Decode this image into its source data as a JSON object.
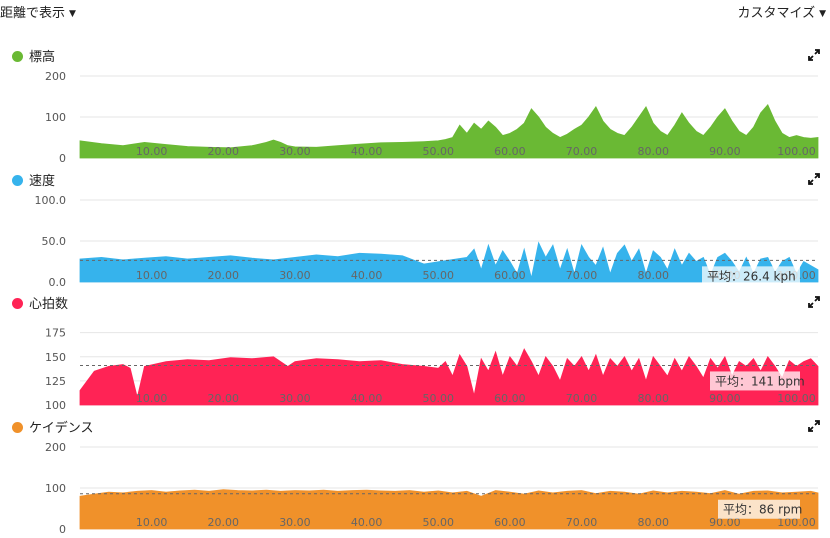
{
  "toolbar": {
    "distance_label": "距離で表示",
    "customize_label": "カスタマイズ"
  },
  "colors": {
    "elevation": "#6ab934",
    "speed": "#36b3ec",
    "heart_rate": "#ff2355",
    "cadence": "#f0912a"
  },
  "panels": [
    {
      "key": "elevation",
      "title": "標高",
      "avg_label": ""
    },
    {
      "key": "speed",
      "title": "速度",
      "avg_label": "平均：26.4 kph"
    },
    {
      "key": "heart_rate",
      "title": "心拍数",
      "avg_label": "平均：141 bpm"
    },
    {
      "key": "cadence",
      "title": "ケイデンス",
      "avg_label": "平均：86 rpm"
    }
  ],
  "chart_data": [
    {
      "type": "area",
      "name": "標高",
      "x_range": [
        0,
        103
      ],
      "x_ticks": [
        "10.00",
        "20.00",
        "30.00",
        "40.00",
        "50.00",
        "60.00",
        "70.00",
        "80.00",
        "90.00",
        "100.00"
      ],
      "y_ticks": [
        "0",
        "100",
        "200"
      ],
      "ylim": [
        0,
        200
      ],
      "x": [
        0,
        3,
        6,
        9,
        12,
        15,
        18,
        21,
        24,
        26,
        27,
        28,
        29,
        30,
        33,
        36,
        39,
        42,
        45,
        48,
        50,
        51,
        52,
        53,
        54,
        55,
        56,
        57,
        58,
        59,
        60,
        61,
        62,
        63,
        64,
        65,
        66,
        67,
        68,
        69,
        70,
        71,
        72,
        73,
        74,
        75,
        76,
        77,
        78,
        79,
        80,
        81,
        82,
        83,
        84,
        85,
        86,
        87,
        88,
        89,
        90,
        91,
        92,
        93,
        94,
        95,
        96,
        97,
        98,
        99,
        100,
        101,
        102,
        103
      ],
      "y": [
        42,
        35,
        30,
        38,
        33,
        28,
        26,
        25,
        30,
        38,
        44,
        38,
        30,
        27,
        26,
        30,
        34,
        37,
        38,
        40,
        42,
        45,
        50,
        80,
        60,
        85,
        70,
        90,
        75,
        55,
        60,
        70,
        85,
        120,
        100,
        75,
        60,
        50,
        58,
        70,
        80,
        100,
        125,
        90,
        70,
        60,
        55,
        75,
        100,
        125,
        85,
        65,
        55,
        80,
        110,
        85,
        65,
        55,
        75,
        100,
        120,
        90,
        65,
        55,
        75,
        110,
        130,
        90,
        60,
        50,
        55,
        50,
        48,
        50
      ]
    },
    {
      "type": "area",
      "name": "速度",
      "x_range": [
        0,
        103
      ],
      "x_ticks": [
        "10.00",
        "20.00",
        "30.00",
        "40.00",
        "50.00",
        "60.00",
        "70.00",
        "80.00",
        "90.00",
        "100.00"
      ],
      "y_ticks": [
        "0.0",
        "50.0",
        "100.0"
      ],
      "ylim": [
        0,
        100
      ],
      "average": 26.4,
      "x": [
        0,
        3,
        6,
        9,
        12,
        15,
        18,
        21,
        24,
        27,
        30,
        33,
        36,
        39,
        42,
        45,
        48,
        51,
        54,
        55,
        56,
        57,
        58,
        59,
        60,
        61,
        62,
        63,
        64,
        65,
        66,
        67,
        68,
        69,
        70,
        71,
        72,
        73,
        74,
        75,
        76,
        77,
        78,
        79,
        80,
        81,
        82,
        83,
        84,
        85,
        86,
        87,
        88,
        89,
        90,
        91,
        92,
        93,
        94,
        95,
        96,
        97,
        98,
        99,
        100,
        101,
        102,
        103
      ],
      "y": [
        28,
        30,
        27,
        29,
        31,
        28,
        30,
        32,
        29,
        27,
        30,
        33,
        31,
        35,
        34,
        32,
        22,
        26,
        30,
        40,
        15,
        45,
        20,
        38,
        25,
        10,
        40,
        5,
        48,
        30,
        45,
        15,
        40,
        10,
        45,
        30,
        20,
        42,
        10,
        35,
        45,
        25,
        40,
        10,
        38,
        30,
        15,
        40,
        20,
        35,
        25,
        30,
        8,
        30,
        35,
        25,
        12,
        30,
        10,
        28,
        30,
        12,
        25,
        30,
        10,
        25,
        20,
        15
      ]
    },
    {
      "type": "area",
      "name": "心拍数",
      "x_range": [
        0,
        103
      ],
      "x_ticks": [
        "10.00",
        "20.00",
        "30.00",
        "40.00",
        "50.00",
        "60.00",
        "70.00",
        "80.00",
        "90.00",
        "100.00"
      ],
      "y_ticks": [
        "100",
        "125",
        "150",
        "175"
      ],
      "ylim": [
        100,
        185
      ],
      "average": 141,
      "x": [
        0,
        2,
        4,
        6,
        7,
        8,
        9,
        12,
        15,
        18,
        21,
        24,
        27,
        29,
        30,
        33,
        36,
        39,
        42,
        45,
        48,
        50,
        51,
        52,
        53,
        54,
        55,
        56,
        57,
        58,
        59,
        60,
        61,
        62,
        63,
        64,
        65,
        66,
        67,
        68,
        69,
        70,
        71,
        72,
        73,
        74,
        75,
        76,
        77,
        78,
        79,
        80,
        81,
        82,
        83,
        84,
        85,
        86,
        87,
        88,
        89,
        90,
        91,
        92,
        93,
        94,
        95,
        96,
        97,
        98,
        99,
        100,
        101,
        102,
        103
      ],
      "y": [
        115,
        135,
        140,
        142,
        138,
        108,
        140,
        145,
        147,
        146,
        149,
        148,
        150,
        140,
        145,
        148,
        147,
        145,
        146,
        142,
        140,
        138,
        145,
        130,
        152,
        140,
        110,
        148,
        135,
        155,
        130,
        150,
        140,
        158,
        145,
        130,
        150,
        140,
        125,
        148,
        140,
        150,
        135,
        152,
        130,
        148,
        140,
        150,
        135,
        148,
        125,
        150,
        140,
        130,
        148,
        135,
        150,
        140,
        128,
        148,
        138,
        150,
        130,
        145,
        140,
        148,
        135,
        150,
        140,
        128,
        146,
        140,
        145,
        148,
        140
      ]
    },
    {
      "type": "area",
      "name": "ケイデンス",
      "x_range": [
        0,
        103
      ],
      "x_ticks": [
        "10.00",
        "20.00",
        "30.00",
        "40.00",
        "50.00",
        "60.00",
        "70.00",
        "80.00",
        "90.00",
        "100.00"
      ],
      "y_ticks": [
        "0",
        "100",
        "200"
      ],
      "ylim": [
        0,
        200
      ],
      "average": 86,
      "x": [
        0,
        2,
        4,
        6,
        8,
        10,
        12,
        14,
        16,
        18,
        20,
        22,
        24,
        26,
        28,
        30,
        32,
        34,
        36,
        38,
        40,
        42,
        44,
        46,
        48,
        50,
        52,
        54,
        56,
        58,
        60,
        62,
        64,
        66,
        68,
        70,
        72,
        74,
        76,
        78,
        80,
        82,
        84,
        86,
        88,
        90,
        92,
        94,
        96,
        98,
        100,
        102,
        103
      ],
      "y": [
        80,
        85,
        90,
        88,
        92,
        94,
        90,
        93,
        95,
        92,
        96,
        94,
        93,
        95,
        92,
        94,
        93,
        95,
        92,
        94,
        95,
        93,
        92,
        94,
        90,
        93,
        88,
        92,
        80,
        94,
        90,
        85,
        93,
        88,
        92,
        94,
        86,
        92,
        90,
        85,
        93,
        88,
        92,
        90,
        86,
        94,
        85,
        92,
        93,
        88,
        90,
        92,
        88
      ]
    }
  ]
}
